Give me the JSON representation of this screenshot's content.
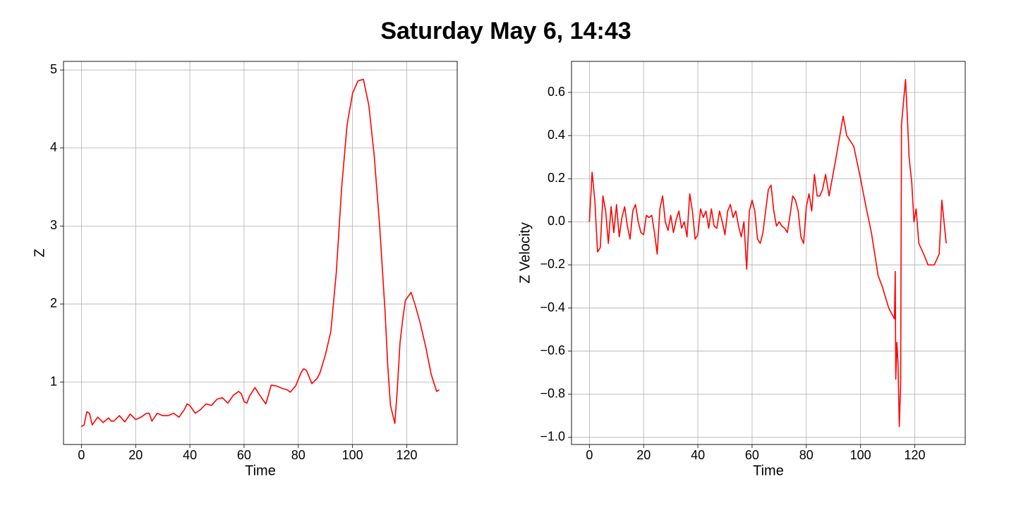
{
  "title": "Saturday May 6, 14:43",
  "chart_data": [
    {
      "type": "line",
      "xlabel": "Time",
      "ylabel": "Z",
      "grid": true,
      "xlim": [
        -6.6,
        138.6
      ],
      "ylim": [
        0.2,
        5.11
      ],
      "xticks": [
        0,
        20,
        40,
        60,
        80,
        100,
        120
      ],
      "yticks": [
        1,
        2,
        3,
        4,
        5
      ],
      "x": [
        0,
        1,
        2,
        3,
        4,
        5,
        6,
        7,
        8,
        10,
        11,
        12,
        14,
        16,
        18,
        20,
        22,
        24,
        25,
        26,
        28,
        30,
        32,
        34,
        36,
        38,
        39,
        40,
        42,
        44,
        46,
        48,
        50,
        52,
        54,
        56,
        58,
        59,
        60,
        61,
        62,
        64,
        66,
        68,
        70,
        72,
        74,
        76,
        77,
        79,
        81,
        82,
        83,
        85,
        87,
        88,
        90,
        92,
        94,
        96,
        98,
        100,
        102,
        104,
        106,
        108,
        110,
        112,
        113,
        114,
        115.6,
        116.5,
        117.5,
        118.5,
        119.5,
        121.6,
        123,
        125,
        127,
        129,
        131,
        132
      ],
      "series": [
        {
          "name": "Z",
          "color": "#ff0000",
          "values": [
            0.43,
            0.45,
            0.62,
            0.6,
            0.45,
            0.5,
            0.55,
            0.52,
            0.48,
            0.54,
            0.5,
            0.5,
            0.57,
            0.49,
            0.59,
            0.52,
            0.55,
            0.6,
            0.6,
            0.5,
            0.6,
            0.57,
            0.57,
            0.6,
            0.55,
            0.65,
            0.72,
            0.7,
            0.6,
            0.65,
            0.72,
            0.7,
            0.78,
            0.8,
            0.73,
            0.83,
            0.88,
            0.85,
            0.75,
            0.73,
            0.82,
            0.93,
            0.82,
            0.72,
            0.96,
            0.95,
            0.92,
            0.9,
            0.87,
            0.95,
            1.12,
            1.17,
            1.15,
            0.98,
            1.05,
            1.12,
            1.35,
            1.65,
            2.4,
            3.5,
            4.3,
            4.7,
            4.86,
            4.88,
            4.55,
            3.9,
            3.0,
            1.9,
            1.2,
            0.7,
            0.47,
            0.9,
            1.5,
            1.8,
            2.05,
            2.15,
            2.0,
            1.75,
            1.45,
            1.1,
            0.88,
            0.9
          ]
        }
      ]
    },
    {
      "type": "line",
      "xlabel": "Time",
      "ylabel": "Z Velocity",
      "grid": true,
      "xlim": [
        -6.6,
        138.6
      ],
      "ylim": [
        -1.033,
        0.744
      ],
      "xticks": [
        0,
        20,
        40,
        60,
        80,
        100,
        120
      ],
      "yticks": [
        {
          "value": -1.0,
          "label": "−1.0"
        },
        {
          "value": -0.8,
          "label": "−0.8"
        },
        {
          "value": -0.6,
          "label": "−0.6"
        },
        {
          "value": -0.4,
          "label": "−0.4"
        },
        {
          "value": -0.2,
          "label": "−0.2"
        },
        {
          "value": 0,
          "label": "0.0"
        },
        0.2,
        0.4,
        0.6
      ],
      "x": [
        0,
        1,
        2,
        3,
        4,
        5,
        6,
        7,
        8,
        9,
        10,
        11,
        12,
        13,
        14,
        15,
        16,
        17,
        18,
        19,
        20,
        21,
        22,
        23,
        24,
        25,
        26,
        27,
        28,
        29,
        30,
        31,
        32,
        33,
        34,
        35,
        36,
        37,
        38,
        39,
        40,
        41,
        42,
        43,
        44,
        45,
        46,
        47,
        48,
        49,
        50,
        51,
        52,
        53,
        54,
        55,
        56,
        57,
        58,
        59,
        60,
        61,
        62,
        63,
        64,
        65,
        66,
        67,
        68,
        69,
        70,
        71,
        72,
        73,
        74,
        75,
        76,
        77,
        78,
        79,
        80,
        81,
        82,
        83,
        84,
        85,
        86,
        87.1,
        88.4,
        91,
        93.6,
        94.9,
        97.5,
        100,
        102,
        104,
        106.5,
        108,
        110.4,
        112.5,
        112.8,
        113,
        113.4,
        113.8,
        114.3,
        114.8,
        115.1,
        115.8,
        116.6,
        117.4,
        117.9,
        118.9,
        119.7,
        120.5,
        121.5,
        123.3,
        124.9,
        127.2,
        129,
        130,
        131.6
      ],
      "series": [
        {
          "name": "Z Velocity",
          "color": "#ff0000",
          "values": [
            0.0,
            0.23,
            0.1,
            -0.14,
            -0.12,
            0.12,
            0.05,
            -0.1,
            0.07,
            -0.05,
            0.08,
            -0.07,
            0.02,
            0.07,
            -0.02,
            -0.08,
            0.05,
            0.08,
            0.0,
            -0.05,
            -0.06,
            0.03,
            0.02,
            0.03,
            -0.05,
            -0.15,
            0.06,
            0.12,
            0.0,
            -0.04,
            0.03,
            -0.05,
            0.01,
            0.05,
            -0.03,
            0.0,
            -0.07,
            0.13,
            0.05,
            -0.08,
            -0.06,
            0.06,
            0.02,
            0.05,
            -0.03,
            0.06,
            -0.02,
            -0.03,
            0.05,
            0.0,
            -0.06,
            0.05,
            0.08,
            0.02,
            0.05,
            -0.02,
            -0.07,
            0.0,
            -0.22,
            0.05,
            0.1,
            0.05,
            -0.08,
            -0.1,
            -0.05,
            0.05,
            0.15,
            0.17,
            0.05,
            -0.02,
            0.0,
            -0.02,
            -0.03,
            -0.05,
            0.03,
            0.12,
            0.1,
            0.05,
            -0.07,
            -0.1,
            0.07,
            0.13,
            0.05,
            0.22,
            0.12,
            0.12,
            0.15,
            0.22,
            0.12,
            0.3,
            0.49,
            0.4,
            0.35,
            0.2,
            0.07,
            -0.05,
            -0.25,
            -0.3,
            -0.4,
            -0.45,
            -0.23,
            -0.73,
            -0.56,
            -0.65,
            -0.95,
            -0.75,
            0.45,
            0.55,
            0.66,
            0.45,
            0.3,
            0.18,
            0.0,
            0.06,
            -0.1,
            -0.15,
            -0.2,
            -0.2,
            -0.15,
            0.1,
            -0.1
          ]
        }
      ]
    }
  ]
}
